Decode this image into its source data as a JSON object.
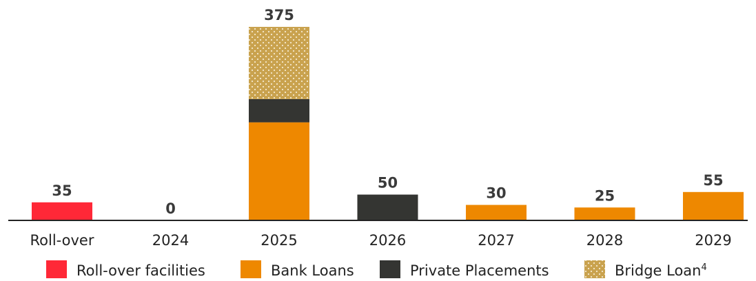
{
  "chart_data": {
    "type": "bar",
    "stacked": true,
    "categories": [
      "Roll-over",
      "2024",
      "2025",
      "2026",
      "2027",
      "2028",
      "2029"
    ],
    "series": [
      {
        "name": "Roll-over facilities",
        "color": "#ff2837",
        "pattern": "solid",
        "values": [
          35,
          0,
          0,
          0,
          0,
          0,
          0
        ]
      },
      {
        "name": "Bank Loans",
        "color": "#ee8800",
        "pattern": "solid",
        "values": [
          0,
          0,
          190,
          0,
          30,
          25,
          55
        ]
      },
      {
        "name": "Private Placements",
        "color": "#343532",
        "pattern": "solid",
        "values": [
          0,
          0,
          45,
          50,
          0,
          0,
          0
        ]
      },
      {
        "name": "Bridge Loan",
        "superscript": "4",
        "color": "#c9a24e",
        "pattern": "dotted",
        "values": [
          0,
          0,
          140,
          0,
          0,
          0,
          0
        ]
      }
    ],
    "totals": [
      35,
      0,
      375,
      50,
      30,
      25,
      55
    ],
    "ylim": [
      0,
      375
    ],
    "title": "",
    "xlabel": "",
    "ylabel": "",
    "grid": false,
    "legend_position": "bottom"
  }
}
